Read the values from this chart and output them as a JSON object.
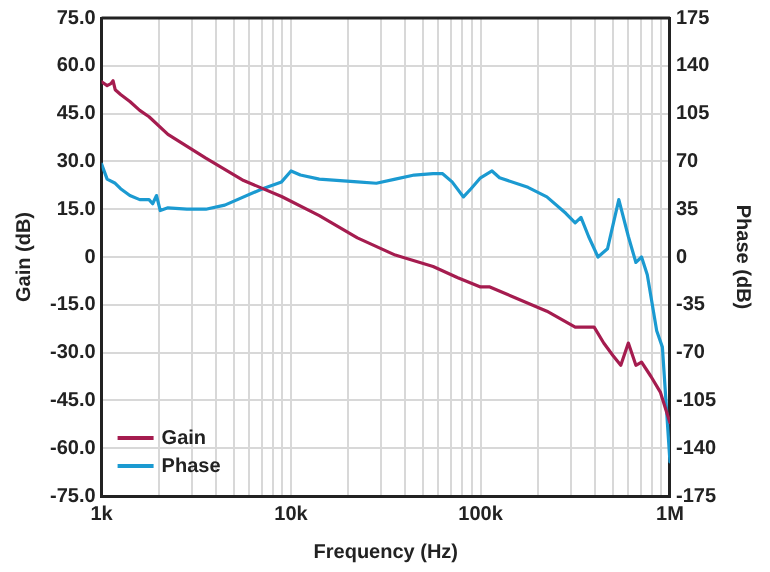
{
  "chart_data": {
    "type": "line",
    "xlabel": "Frequency (Hz)",
    "ylabel": "Gain (dB)",
    "y2label": "Phase (dB)",
    "log": "x",
    "grid": true,
    "legend": "bottom left",
    "marker": "none",
    "line_style": "solid",
    "xlim": [
      1000,
      1000000
    ],
    "xticks": [
      {
        "value": 1000,
        "label": "1k"
      },
      {
        "value": 2000,
        "label": null
      },
      {
        "value": 3000,
        "label": null
      },
      {
        "value": 4000,
        "label": null
      },
      {
        "value": 5000,
        "label": null
      },
      {
        "value": 6000,
        "label": null
      },
      {
        "value": 7000,
        "label": null
      },
      {
        "value": 8000,
        "label": null
      },
      {
        "value": 9000,
        "label": null
      },
      {
        "value": 10000,
        "label": "10k"
      },
      {
        "value": 20000,
        "label": null
      },
      {
        "value": 30000,
        "label": null
      },
      {
        "value": 40000,
        "label": null
      },
      {
        "value": 50000,
        "label": null
      },
      {
        "value": 60000,
        "label": null
      },
      {
        "value": 70000,
        "label": null
      },
      {
        "value": 80000,
        "label": null
      },
      {
        "value": 90000,
        "label": null
      },
      {
        "value": 100000,
        "label": "100k"
      },
      {
        "value": 200000,
        "label": null
      },
      {
        "value": 300000,
        "label": null
      },
      {
        "value": 400000,
        "label": null
      },
      {
        "value": 500000,
        "label": null
      },
      {
        "value": 600000,
        "label": null
      },
      {
        "value": 700000,
        "label": null
      },
      {
        "value": 800000,
        "label": null
      },
      {
        "value": 900000,
        "label": null
      },
      {
        "value": 1000000,
        "label": "1M"
      }
    ],
    "ylim": [
      -75,
      75
    ],
    "yticks": [
      {
        "value": -75,
        "label": "-75.0"
      },
      {
        "value": -60,
        "label": "-60.0"
      },
      {
        "value": -45,
        "label": "-45.0"
      },
      {
        "value": -30,
        "label": "-30.0"
      },
      {
        "value": -15,
        "label": "-15.0"
      },
      0,
      {
        "value": 15,
        "label": "15.0"
      },
      {
        "value": 30,
        "label": "30.0"
      },
      {
        "value": 45,
        "label": "45.0"
      },
      {
        "value": 60,
        "label": "60.0"
      },
      {
        "value": 75,
        "label": "75.0"
      }
    ],
    "y2lim": [
      -175,
      175
    ],
    "y2ticks": [
      -175,
      -140,
      -105,
      -70,
      -35,
      0,
      35,
      70,
      105,
      140,
      175
    ],
    "series": [
      {
        "name": "Gain",
        "color": "#a51c4f",
        "x": [
          1000,
          1070,
          1120,
          1150,
          1180,
          1260,
          1410,
          1590,
          1780,
          2240,
          3550,
          5620,
          8910,
          14100,
          22400,
          35500,
          56200,
          75900,
          100000,
          112000,
          224000,
          316000,
          398000,
          447000,
          501000,
          550000,
          603000,
          661000,
          708000,
          794000,
          891000,
          1000000
        ],
        "values": [
          55,
          53.8,
          54.4,
          55.3,
          52.5,
          51,
          48.8,
          46,
          44,
          38.5,
          31,
          24,
          19,
          13,
          6,
          0.6,
          -3,
          -6.5,
          -9.4,
          -9.4,
          -17,
          -22,
          -22,
          -27,
          -31,
          -34,
          -27,
          -34,
          -33,
          -37.5,
          -42.5,
          -52
        ]
      },
      {
        "name": "Phase",
        "color": "#1b9ad1",
        "axis": "y2",
        "x": [
          1000,
          1070,
          1180,
          1260,
          1410,
          1590,
          1780,
          1860,
          1950,
          2040,
          2240,
          2820,
          3550,
          4470,
          7080,
          8910,
          10000,
          11200,
          14100,
          22400,
          28200,
          35500,
          44700,
          56200,
          63100,
          70800,
          81300,
          89100,
          100000,
          115000,
          126000,
          178000,
          224000,
          282000,
          316000,
          339000,
          372000,
          417000,
          468000,
          537000,
          603000,
          661000,
          708000,
          759000,
          851000,
          912000,
          1000000
        ],
        "values": [
          68,
          57,
          54,
          50,
          45,
          42,
          42,
          39,
          45,
          34,
          36,
          35,
          35,
          38,
          50,
          55,
          63,
          60,
          57,
          55,
          54,
          57,
          60,
          61,
          61,
          55,
          44,
          50,
          58,
          63,
          58,
          51,
          44,
          32,
          25,
          29,
          15,
          0,
          6,
          42,
          15,
          -4,
          0,
          -13,
          -54,
          -66,
          -150
        ]
      }
    ]
  }
}
